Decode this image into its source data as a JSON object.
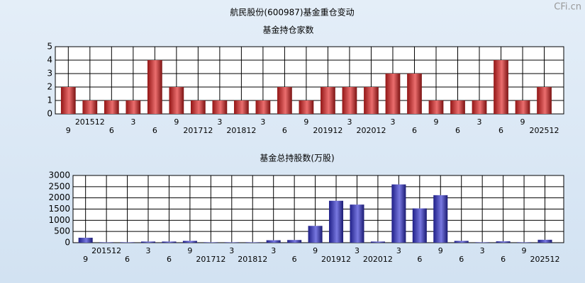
{
  "title": "航民股份(600987)基金重仓变动",
  "watermark": "CFi.cn",
  "chart_data": [
    {
      "type": "bar",
      "title": "基金持仓家数",
      "categories": [
        "9",
        "201512",
        "6",
        "3",
        "6",
        "9",
        "201712",
        "3",
        "201812",
        "3",
        "6",
        "9",
        "201912",
        "3",
        "202012",
        "3",
        "6",
        "9",
        "6",
        "3",
        "6",
        "9",
        "202512"
      ],
      "values": [
        2,
        1,
        1,
        1,
        4,
        2,
        1,
        1,
        1,
        1,
        2,
        1,
        2,
        2,
        2,
        3,
        3,
        1,
        1,
        1,
        4,
        1,
        2
      ],
      "color": "#e02020",
      "ylim": [
        0,
        5
      ],
      "yticks": [
        0,
        1,
        2,
        3,
        4,
        5
      ],
      "grid": true
    },
    {
      "type": "bar",
      "title": "基金总持股数(万股)",
      "categories": [
        "9",
        "201512",
        "6",
        "3",
        "6",
        "9",
        "201712",
        "3",
        "201812",
        "3",
        "6",
        "9",
        "201912",
        "3",
        "202012",
        "3",
        "6",
        "9",
        "6",
        "3",
        "6",
        "9",
        "202512"
      ],
      "values": [
        220,
        20,
        20,
        50,
        50,
        80,
        20,
        20,
        20,
        110,
        120,
        750,
        1870,
        1700,
        50,
        2600,
        1530,
        2120,
        80,
        20,
        60,
        20,
        130
      ],
      "color": "#3030d0",
      "ylim": [
        0,
        3000
      ],
      "yticks": [
        0,
        500,
        1000,
        1500,
        2000,
        2500,
        3000
      ],
      "grid": true
    }
  ]
}
